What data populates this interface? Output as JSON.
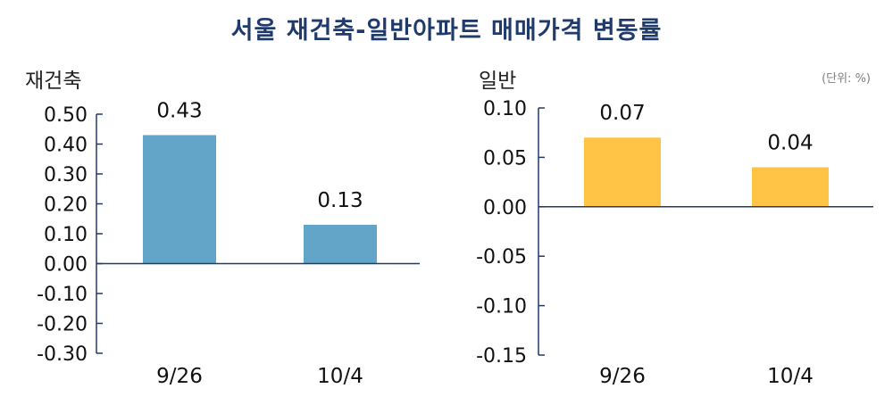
{
  "title": "서울 재건축-일반아파트 매매가격 변동률",
  "unit_note": "(단위: %)",
  "colors": {
    "axis": "#1f3a6b",
    "rebuild_bar": "#62a5c9",
    "general_bar": "#ffc445",
    "title": "#1f3a6b"
  },
  "chart_data": [
    {
      "type": "bar",
      "ylabel": "재건축",
      "categories": [
        "9/26",
        "10/4"
      ],
      "values": [
        0.43,
        0.13
      ],
      "value_labels": [
        "0.43",
        "0.13"
      ],
      "ylim": [
        -0.3,
        0.5
      ],
      "yticks": [
        "0.50",
        "0.40",
        "0.30",
        "0.20",
        "0.10",
        "0.00",
        "-0.10",
        "-0.20",
        "-0.30"
      ],
      "grid": false
    },
    {
      "type": "bar",
      "ylabel": "일반",
      "categories": [
        "9/26",
        "10/4"
      ],
      "values": [
        0.07,
        0.04
      ],
      "value_labels": [
        "0.07",
        "0.04"
      ],
      "ylim": [
        -0.15,
        0.1
      ],
      "yticks": [
        "0.10",
        "0.05",
        "0.00",
        "-0.05",
        "-0.10",
        "-0.15"
      ],
      "grid": false
    }
  ]
}
